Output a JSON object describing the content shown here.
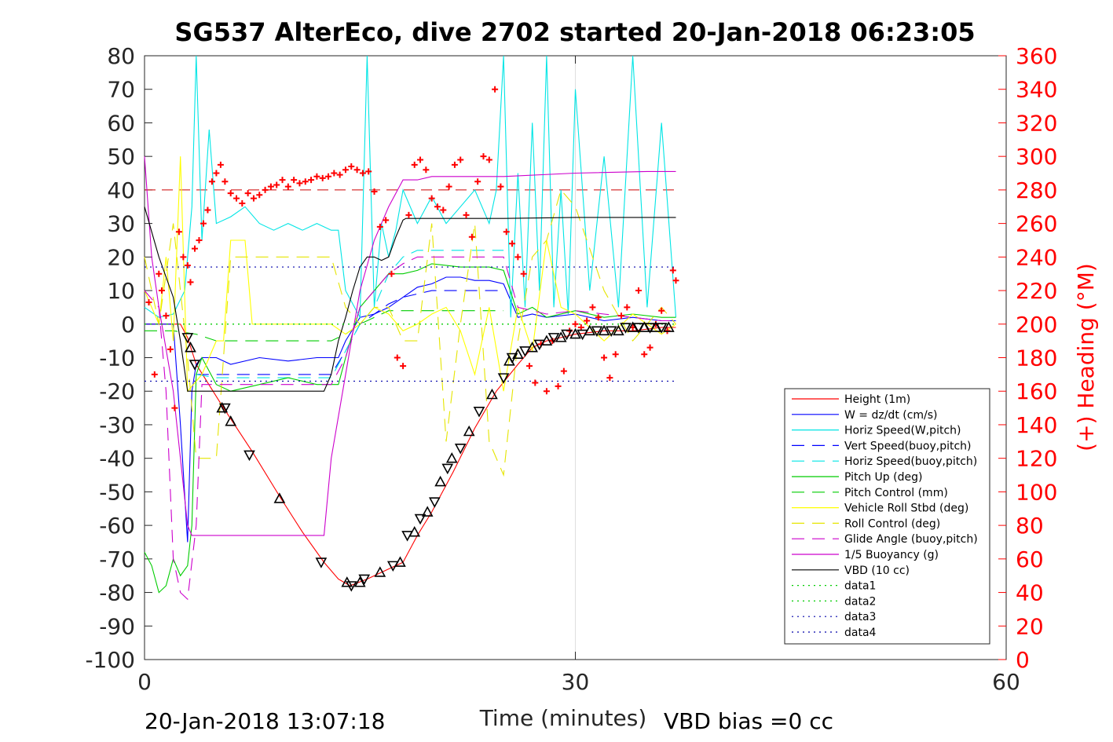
{
  "chart_data": {
    "type": "line",
    "title": "SG537 AlterEco, dive 2702 started 20-Jan-2018 06:23:05",
    "xlabel": "Time (minutes)",
    "y2label": "(+) Heading (°M)",
    "footer_left": "20-Jan-2018 13:07:18",
    "footer_right": "VBD bias =0 cc",
    "xlim": [
      0,
      60
    ],
    "ylim": [
      -100,
      80
    ],
    "y2lim": [
      0,
      360
    ],
    "xticks": [
      0,
      30,
      60
    ],
    "yticks": [
      80,
      70,
      60,
      50,
      40,
      30,
      20,
      10,
      0,
      -10,
      -20,
      -30,
      -40,
      -50,
      -60,
      -70,
      -80,
      -90,
      -100
    ],
    "y2ticks": [
      360,
      340,
      320,
      300,
      280,
      260,
      240,
      220,
      200,
      180,
      160,
      140,
      120,
      100,
      80,
      60,
      40,
      20,
      0
    ],
    "grid": "x-only at 30",
    "legend_position": "bottom-right",
    "colors": {
      "heading": "#ff0000",
      "axis": "#262626",
      "right_axis": "#ff0000"
    },
    "series": [
      {
        "name": "Height (1m)",
        "color": "#ff0000",
        "style": "solid",
        "x": [
          0,
          2.5,
          3.0,
          3.3,
          3.6,
          5.5,
          7.5,
          9.5,
          11,
          12.5,
          13.5,
          14.3,
          15.5,
          17.0,
          18,
          19.0,
          20.0,
          21.5,
          23,
          24.5,
          26,
          27,
          28,
          29,
          30,
          32,
          34,
          36,
          37
        ],
        "y": [
          0,
          0,
          -4,
          -8,
          -12,
          -25,
          -38,
          -52,
          -62,
          -71,
          -76,
          -78,
          -76,
          -73,
          -71,
          -63,
          -56,
          -44,
          -31,
          -20,
          -12,
          -7,
          -5,
          -4,
          -3,
          -2,
          -2,
          -1,
          -1
        ]
      },
      {
        "name": "W = dz/dt (cm/s)",
        "color": "#0000ff",
        "style": "solid",
        "x": [
          0,
          1,
          2,
          2.5,
          3,
          3.3,
          3.6,
          4,
          5,
          6,
          8,
          10,
          12,
          13.5,
          14,
          15,
          16,
          17,
          18,
          19,
          20,
          21,
          22,
          23,
          24,
          25,
          26,
          27,
          28,
          30,
          32,
          34,
          36,
          37
        ],
        "y": [
          0,
          0,
          0,
          -30,
          -65,
          -20,
          -12,
          -10,
          -10,
          -12,
          -10,
          -11,
          -10,
          -10,
          -5,
          2,
          3,
          5,
          8,
          11,
          12,
          14,
          14,
          13,
          13,
          12,
          2,
          3,
          2,
          3,
          1,
          2,
          1,
          1
        ]
      },
      {
        "name": "Horiz Speed(W,pitch)",
        "color": "#00e5e5",
        "style": "solid",
        "x": [
          0,
          1,
          2,
          2.8,
          3.3,
          3.6,
          4,
          4.5,
          5,
          6,
          7,
          8,
          9,
          10,
          11,
          12,
          13,
          13.5,
          14,
          15,
          15.5,
          16,
          16.5,
          17,
          17.5,
          18,
          19,
          20,
          21,
          22,
          23,
          24,
          24.5,
          25,
          25.5,
          26,
          26.5,
          27,
          27.5,
          28,
          28.5,
          29,
          29.5,
          30,
          31,
          32,
          33,
          34,
          35,
          36,
          37
        ],
        "y": [
          5,
          2,
          3,
          10,
          35,
          80,
          25,
          58,
          30,
          32,
          35,
          30,
          28,
          30,
          28,
          30,
          28,
          28,
          10,
          2,
          80,
          5,
          30,
          20,
          28,
          40,
          30,
          38,
          30,
          35,
          40,
          30,
          40,
          80,
          2,
          45,
          5,
          60,
          10,
          80,
          5,
          40,
          3,
          70,
          10,
          50,
          5,
          80,
          5,
          60,
          2
        ]
      },
      {
        "name": "Vert Speed(buoy,pitch)",
        "color": "#0000ff",
        "style": "dash",
        "x": [
          3.6,
          5,
          7,
          9,
          11,
          13,
          14,
          15,
          16,
          17,
          18,
          19,
          20,
          22,
          24,
          25
        ],
        "y": [
          -15,
          -15,
          -15,
          -15,
          -15,
          -15,
          -8,
          0,
          3,
          6,
          8,
          9,
          10,
          10,
          10,
          10
        ]
      },
      {
        "name": "Horiz Speed(buoy,pitch)",
        "color": "#00e5e5",
        "style": "dash",
        "x": [
          3.6,
          5,
          7,
          9,
          11,
          13,
          14,
          15,
          16,
          17,
          18,
          19,
          20,
          22,
          24,
          25
        ],
        "y": [
          -15,
          -16,
          -16,
          -16,
          -16,
          -16,
          -8,
          0,
          5,
          15,
          20,
          22,
          22,
          22,
          22,
          22
        ]
      },
      {
        "name": "Pitch Up (deg)",
        "color": "#00cc00",
        "style": "solid",
        "x": [
          0,
          0.5,
          1,
          1.5,
          2,
          2.5,
          3.0,
          3.3,
          3.6,
          4,
          5,
          6,
          8,
          10,
          12,
          13.5,
          14,
          15,
          16,
          17,
          18,
          19,
          20,
          22,
          24,
          25,
          26,
          27,
          28,
          30,
          32,
          34,
          36,
          37
        ],
        "y": [
          -68,
          -72,
          -80,
          -78,
          -70,
          -75,
          -72,
          -60,
          -15,
          -10,
          -18,
          -20,
          -18,
          -16,
          -18,
          -18,
          -10,
          5,
          10,
          15,
          15,
          16,
          18,
          17,
          17,
          16,
          3,
          5,
          2,
          4,
          2,
          3,
          2,
          2
        ]
      },
      {
        "name": "Pitch Control (mm)",
        "color": "#00cc00",
        "style": "dash",
        "x": [
          0,
          2,
          3.6,
          5,
          7,
          9,
          11,
          13,
          14,
          15,
          17,
          20,
          23,
          25
        ],
        "y": [
          -2,
          -2,
          -3,
          -5,
          -5,
          -5,
          -5,
          -5,
          -3,
          0,
          4,
          4,
          4,
          4
        ]
      },
      {
        "name": "Vehicle Roll Stbd (deg)",
        "color": "#ffff00",
        "style": "solid",
        "x": [
          0,
          1,
          1.5,
          2,
          2.5,
          3,
          4,
          5,
          5.5,
          6,
          7,
          7.5,
          8,
          10,
          12,
          13,
          14,
          15,
          16,
          17,
          18,
          19,
          20,
          21,
          22,
          23,
          24,
          25,
          26,
          27,
          28,
          29,
          30,
          32,
          34,
          36,
          37
        ],
        "y": [
          10,
          0,
          20,
          -5,
          50,
          -20,
          -15,
          -5,
          -5,
          25,
          25,
          0,
          0,
          0,
          0,
          0,
          -3,
          0,
          5,
          3,
          -2,
          0,
          3,
          5,
          -2,
          -15,
          5,
          -20,
          5,
          -8,
          25,
          5,
          3,
          -5,
          3,
          -3,
          0
        ]
      },
      {
        "name": "Roll Control (deg)",
        "color": "#e5e500",
        "style": "dash",
        "x": [
          0,
          1,
          2,
          3,
          3.6,
          4,
          5,
          6,
          7,
          8,
          10,
          12,
          13,
          14,
          15,
          16,
          17,
          18,
          19,
          20,
          21,
          22,
          23,
          24,
          25,
          26,
          27,
          28,
          29,
          30,
          32,
          34,
          36,
          37
        ],
        "y": [
          20,
          0,
          30,
          -10,
          -40,
          -40,
          -40,
          20,
          20,
          20,
          20,
          20,
          20,
          5,
          0,
          5,
          5,
          -5,
          -5,
          30,
          -35,
          0,
          30,
          -35,
          -45,
          -5,
          20,
          25,
          40,
          35,
          10,
          -5,
          5,
          0
        ]
      },
      {
        "name": "Glide Angle (buoy,pitch)",
        "color": "#cc00cc",
        "style": "dash",
        "x": [
          0,
          1,
          1.5,
          2,
          2.5,
          3,
          3.6,
          4,
          5,
          6,
          8,
          10,
          12,
          13,
          14,
          15,
          16,
          17,
          18,
          19,
          20,
          22,
          24,
          25,
          26,
          28,
          30,
          32,
          34,
          36,
          37
        ],
        "y": [
          10,
          5,
          -20,
          -70,
          -80,
          -82,
          -60,
          -18,
          -18,
          -18,
          -18,
          -18,
          -18,
          -18,
          -10,
          5,
          10,
          15,
          18,
          20,
          20,
          20,
          20,
          20,
          5,
          3,
          4,
          3,
          2,
          1,
          1
        ]
      },
      {
        "name": "1/5 Buoyancy (g)",
        "color": "#cc00cc",
        "style": "solid",
        "x": [
          0,
          0.5,
          1,
          2,
          3,
          3.3,
          5,
          8,
          10,
          12,
          12.5,
          13,
          14,
          15,
          16,
          17,
          18,
          19,
          20,
          25,
          30,
          35,
          37
        ],
        "y": [
          50,
          20,
          5,
          -20,
          -60,
          -63,
          -63,
          -63,
          -63,
          -63,
          -63,
          -40,
          -15,
          10,
          25,
          35,
          43,
          43,
          44,
          44,
          45,
          45.5,
          45.5
        ]
      },
      {
        "name": "VBD (10 cc)",
        "color": "#000000",
        "style": "solid",
        "x": [
          0,
          1,
          2,
          2.5,
          3,
          5,
          8,
          10,
          12,
          12.5,
          13,
          13.5,
          14,
          14.5,
          15,
          15.5,
          16,
          16.5,
          17,
          17.5,
          18,
          18.2,
          20,
          25,
          30,
          35,
          37
        ],
        "y": [
          35,
          20,
          8,
          -5,
          -20,
          -20,
          -20,
          -20,
          -20,
          -20,
          -15,
          -5,
          2,
          10,
          17,
          20,
          20,
          19,
          20,
          26,
          31,
          31.5,
          31.5,
          31.5,
          31.8,
          31.8,
          31.8
        ]
      },
      {
        "name": "data1",
        "color": "#00cc00",
        "style": "dot",
        "x": [
          0,
          37
        ],
        "y": [
          0,
          0
        ]
      },
      {
        "name": "data2",
        "color": "#00cc00",
        "style": "dot",
        "x": [
          0,
          37
        ],
        "y": [
          0,
          0
        ]
      },
      {
        "name": "data3",
        "color": "#0000aa",
        "style": "dot",
        "x": [
          0,
          37
        ],
        "y": [
          17,
          17
        ]
      },
      {
        "name": "data4",
        "color": "#0000aa",
        "style": "dot",
        "x": [
          0,
          37
        ],
        "y": [
          -17,
          -17
        ]
      }
    ],
    "reference_line": {
      "color": "#cc0000",
      "style": "dash",
      "y2": 280,
      "x": [
        0,
        37
      ]
    },
    "heading_points": {
      "color": "#ff0000",
      "x": [
        0.3,
        0.7,
        1.0,
        1.2,
        1.5,
        1.8,
        2.1,
        2.4,
        2.7,
        3.0,
        3.2,
        3.5,
        3.8,
        4.1,
        4.4,
        4.7,
        5.0,
        5.3,
        5.6,
        6.0,
        6.4,
        6.8,
        7.2,
        7.6,
        8.0,
        8.4,
        8.8,
        9.2,
        9.6,
        10.0,
        10.4,
        10.8,
        11.2,
        11.6,
        12.0,
        12.4,
        12.8,
        13.2,
        13.6,
        14.0,
        14.4,
        14.8,
        15.2,
        15.6,
        16.0,
        16.4,
        16.8,
        17.2,
        17.6,
        18.0,
        18.4,
        18.8,
        19.2,
        19.6,
        20.0,
        20.4,
        20.8,
        21.2,
        21.6,
        22.0,
        22.4,
        22.8,
        23.2,
        23.6,
        24.0,
        24.4,
        24.8,
        25.2,
        25.6,
        26.0,
        26.4,
        26.8,
        27.2,
        27.6,
        28.0,
        28.4,
        28.8,
        29.2,
        29.6,
        30.0,
        30.4,
        30.8,
        31.2,
        31.6,
        32.0,
        32.4,
        32.8,
        33.2,
        33.6,
        34.0,
        34.4,
        34.8,
        35.2,
        35.6,
        36.0,
        36.4,
        36.8,
        37.0
      ],
      "y2": [
        213,
        170,
        230,
        220,
        205,
        185,
        150,
        255,
        240,
        235,
        225,
        245,
        250,
        260,
        268,
        285,
        290,
        295,
        285,
        278,
        275,
        272,
        278,
        275,
        277,
        280,
        282,
        283,
        286,
        282,
        286,
        284,
        285,
        286,
        288,
        287,
        288,
        290,
        289,
        292,
        294,
        292,
        290,
        291,
        279,
        258,
        262,
        230,
        180,
        175,
        265,
        295,
        298,
        292,
        275,
        270,
        268,
        282,
        295,
        298,
        265,
        252,
        285,
        300,
        298,
        340,
        282,
        255,
        248,
        240,
        230,
        175,
        165,
        188,
        160,
        190,
        163,
        172,
        196,
        200,
        198,
        202,
        210,
        204,
        180,
        168,
        182,
        205,
        210,
        198,
        220,
        182,
        186,
        200,
        208,
        196,
        232,
        226
      ]
    },
    "triangle_markers": {
      "color": "#000000",
      "x": [
        3.0,
        3.2,
        3.5,
        5.4,
        5.6,
        6.0,
        7.3,
        9.4,
        12.3,
        14.1,
        14.4,
        15.0,
        15.3,
        16.4,
        17.3,
        17.8,
        18.3,
        18.8,
        19.2,
        19.7,
        20.2,
        20.6,
        21.1,
        21.4,
        22.0,
        22.6,
        23.3,
        24.2,
        25.0,
        25.4,
        25.6,
        26.0,
        26.5,
        27.0,
        27.5,
        28.0,
        28.5,
        29.0,
        29.4,
        30.0,
        30.5,
        31.0,
        31.5,
        32.0,
        32.5,
        33.0,
        33.5,
        34.0,
        34.4,
        34.8,
        35.2,
        35.6,
        36.0,
        36.5
      ],
      "y": [
        -4,
        -7,
        -12,
        -25,
        -25,
        -29,
        -39,
        -52,
        -71,
        -77,
        -78,
        -77,
        -76,
        -74,
        -72,
        -71,
        -63,
        -62,
        -58,
        -56,
        -53,
        -47,
        -43,
        -40,
        -37,
        -32,
        -26,
        -21,
        -16,
        -11,
        -10,
        -9,
        -8,
        -7,
        -6,
        -5,
        -4,
        -4,
        -3,
        -3,
        -3,
        -2,
        -2,
        -2,
        -2,
        -2,
        -1,
        -1,
        -1,
        -1,
        -1,
        -1,
        -1,
        -1
      ]
    }
  }
}
